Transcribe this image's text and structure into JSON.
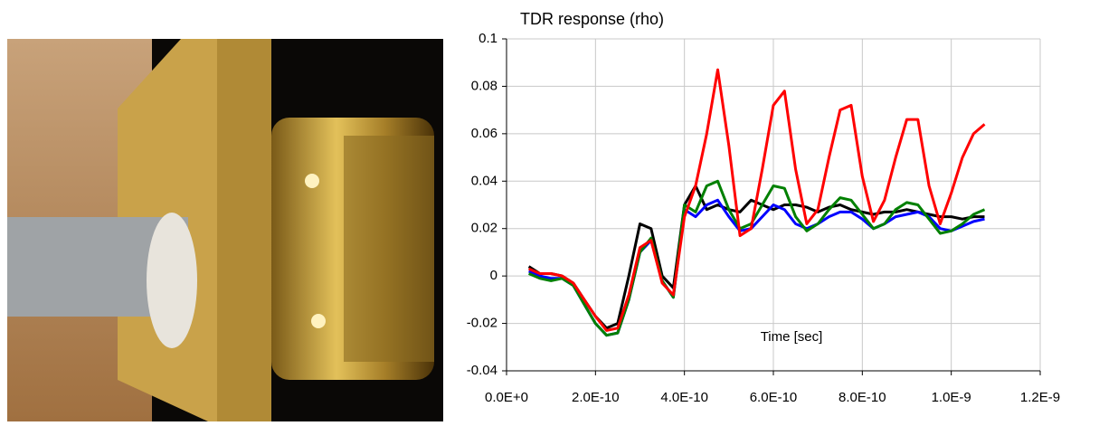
{
  "chart_data": {
    "type": "line",
    "title": "TDR response (rho)",
    "x_label": "Time [sec]",
    "x": [
      5e-11,
      7.5e-11,
      1e-10,
      1.25e-10,
      1.5e-10,
      1.75e-10,
      2e-10,
      2.25e-10,
      2.5e-10,
      2.75e-10,
      3e-10,
      3.25e-10,
      3.5e-10,
      3.75e-10,
      4e-10,
      4.25e-10,
      4.5e-10,
      4.75e-10,
      5e-10,
      5.25e-10,
      5.5e-10,
      5.75e-10,
      6e-10,
      6.25e-10,
      6.5e-10,
      6.75e-10,
      7e-10,
      7.25e-10,
      7.5e-10,
      7.75e-10,
      8e-10,
      8.25e-10,
      8.5e-10,
      8.75e-10,
      9e-10,
      9.25e-10,
      9.5e-10,
      9.75e-10,
      1e-09,
      1.025e-09,
      1.05e-09,
      1.075e-09
    ],
    "series": [
      {
        "color": "#000000",
        "values": [
          0.004,
          0.001,
          0.001,
          0.0,
          -0.003,
          -0.01,
          -0.017,
          -0.022,
          -0.02,
          0.0,
          0.022,
          0.02,
          0.0,
          -0.005,
          0.03,
          0.038,
          0.028,
          0.03,
          0.028,
          0.027,
          0.032,
          0.03,
          0.028,
          0.03,
          0.03,
          0.029,
          0.027,
          0.029,
          0.03,
          0.028,
          0.027,
          0.026,
          0.027,
          0.027,
          0.028,
          0.027,
          0.026,
          0.025,
          0.025,
          0.024,
          0.025,
          0.025
        ]
      },
      {
        "color": "#0000ff",
        "values": [
          0.002,
          0.0,
          -0.001,
          -0.001,
          -0.004,
          -0.012,
          -0.02,
          -0.025,
          -0.024,
          -0.01,
          0.01,
          0.015,
          -0.002,
          -0.009,
          0.028,
          0.025,
          0.03,
          0.032,
          0.025,
          0.019,
          0.02,
          0.025,
          0.03,
          0.028,
          0.022,
          0.02,
          0.022,
          0.025,
          0.027,
          0.027,
          0.024,
          0.02,
          0.022,
          0.025,
          0.026,
          0.027,
          0.025,
          0.02,
          0.019,
          0.021,
          0.023,
          0.024
        ]
      },
      {
        "color": "#008000",
        "values": [
          0.001,
          -0.001,
          -0.002,
          -0.001,
          -0.004,
          -0.012,
          -0.02,
          -0.025,
          -0.024,
          -0.01,
          0.01,
          0.016,
          -0.002,
          -0.009,
          0.03,
          0.027,
          0.038,
          0.04,
          0.028,
          0.02,
          0.022,
          0.03,
          0.038,
          0.037,
          0.025,
          0.019,
          0.022,
          0.028,
          0.033,
          0.032,
          0.026,
          0.02,
          0.022,
          0.028,
          0.031,
          0.03,
          0.024,
          0.018,
          0.019,
          0.022,
          0.026,
          0.028
        ]
      },
      {
        "color": "#ff0000",
        "values": [
          0.003,
          0.001,
          0.001,
          0.0,
          -0.003,
          -0.01,
          -0.017,
          -0.023,
          -0.022,
          -0.008,
          0.012,
          0.015,
          -0.003,
          -0.008,
          0.025,
          0.038,
          0.06,
          0.087,
          0.055,
          0.017,
          0.02,
          0.045,
          0.072,
          0.078,
          0.045,
          0.022,
          0.028,
          0.05,
          0.07,
          0.072,
          0.042,
          0.023,
          0.032,
          0.05,
          0.066,
          0.066,
          0.038,
          0.022,
          0.035,
          0.05,
          0.06,
          0.064
        ]
      }
    ],
    "xlim": [
      0,
      1.2e-09
    ],
    "xticks": [
      {
        "value": 0,
        "label": "0.0E+0"
      },
      {
        "value": 2e-10,
        "label": "2.0E-10"
      },
      {
        "value": 4e-10,
        "label": "4.0E-10"
      },
      {
        "value": 6e-10,
        "label": "6.0E-10"
      },
      {
        "value": 8e-10,
        "label": "8.0E-10"
      },
      {
        "value": 1e-09,
        "label": "1.0E-9"
      },
      {
        "value": 1.2e-09,
        "label": "1.2E-9"
      }
    ],
    "ylim": [
      -0.04,
      0.1
    ],
    "yticks": [
      -0.04,
      -0.02,
      0,
      0.02,
      0.04,
      0.06,
      0.08,
      0.1
    ],
    "grid": true
  }
}
